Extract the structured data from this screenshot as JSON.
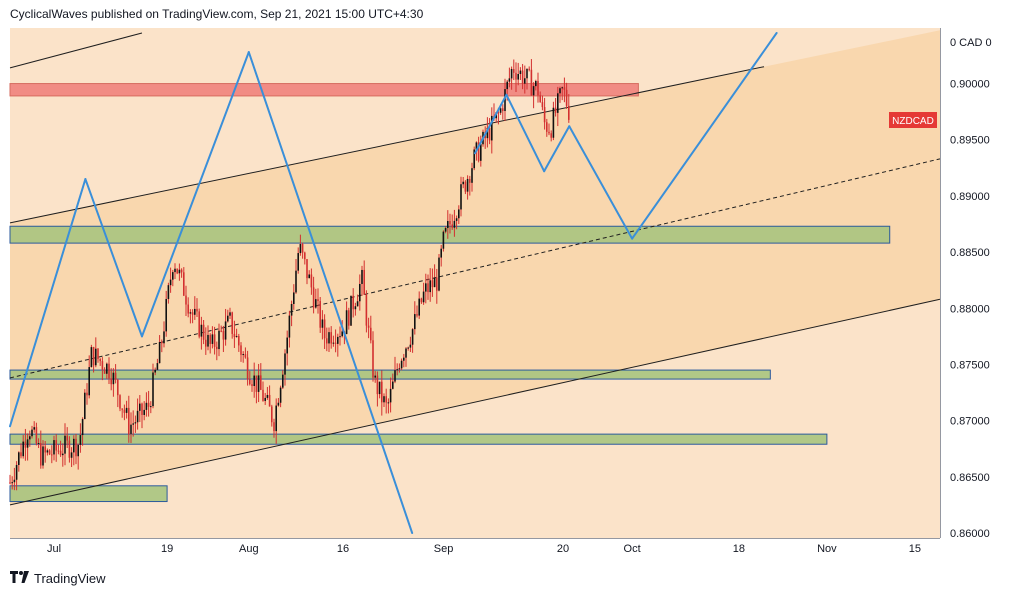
{
  "header": {
    "text": "CyclicalWaves published on TradingView.com, Sep 21, 2021 15:00 UTC+4:30"
  },
  "footer": {
    "brand": "TradingView",
    "logo_icon": "tradingview-logo-icon"
  },
  "colors": {
    "background": "#fbe3c9",
    "channel_fill": "#f9d7ae",
    "candle": "#d32f2f",
    "wave": "#3a8fd9",
    "green_zone": "#a9c47f",
    "green_zone_border": "#2b5a9c",
    "red_zone": "#ef7c78",
    "price_tag": "#e53935"
  },
  "chart_data": {
    "type": "candlestick",
    "symbol": "NZDCAD",
    "currency": "CAD",
    "price_tag": "NZDCAD",
    "y_axis": {
      "unit_label": "0 CAD 0",
      "ticks": [
        "0.90000",
        "0.89500",
        "0.89000",
        "0.88500",
        "0.88000",
        "0.87500",
        "0.87000",
        "0.86500",
        "0.86000"
      ],
      "range": [
        0.86,
        0.9045
      ]
    },
    "x_axis": {
      "ticks": [
        "Jul",
        "19",
        "Aug",
        "16",
        "Sep",
        "20",
        "Oct",
        "18",
        "Nov",
        "15"
      ],
      "tick_dates": [
        "2021-07-01",
        "2021-07-19",
        "2021-08-01",
        "2021-08-16",
        "2021-09-01",
        "2021-09-20",
        "2021-10-01",
        "2021-10-18",
        "2021-11-01",
        "2021-11-15"
      ]
    },
    "candles": {
      "start": "2021-06-24",
      "end": "2021-09-21",
      "path": [
        [
          "2021-06-24",
          0.8645
        ],
        [
          "2021-06-27",
          0.8695
        ],
        [
          "2021-06-29",
          0.8668
        ],
        [
          "2021-07-02",
          0.8675
        ],
        [
          "2021-07-05",
          0.868
        ],
        [
          "2021-07-07",
          0.876
        ],
        [
          "2021-07-10",
          0.8745
        ],
        [
          "2021-07-13",
          0.8695
        ],
        [
          "2021-07-16",
          0.8712
        ],
        [
          "2021-07-18",
          0.8765
        ],
        [
          "2021-07-20",
          0.8845
        ],
        [
          "2021-07-23",
          0.8795
        ],
        [
          "2021-07-26",
          0.8765
        ],
        [
          "2021-07-29",
          0.8788
        ],
        [
          "2021-08-01",
          0.8745
        ],
        [
          "2021-08-03",
          0.8725
        ],
        [
          "2021-08-05",
          0.87
        ],
        [
          "2021-08-07",
          0.877
        ],
        [
          "2021-08-09",
          0.8855
        ],
        [
          "2021-08-11",
          0.8818
        ],
        [
          "2021-08-13",
          0.8775
        ],
        [
          "2021-08-16",
          0.8782
        ],
        [
          "2021-08-19",
          0.8825
        ],
        [
          "2021-08-21",
          0.8735
        ],
        [
          "2021-08-23",
          0.871
        ],
        [
          "2021-08-25",
          0.8755
        ],
        [
          "2021-08-27",
          0.878
        ],
        [
          "2021-08-29",
          0.8815
        ],
        [
          "2021-08-31",
          0.8825
        ],
        [
          "2021-09-01",
          0.886
        ],
        [
          "2021-09-03",
          0.889
        ],
        [
          "2021-09-06",
          0.8935
        ],
        [
          "2021-09-08",
          0.8955
        ],
        [
          "2021-09-10",
          0.8975
        ],
        [
          "2021-09-12",
          0.9015
        ],
        [
          "2021-09-14",
          0.9005
        ],
        [
          "2021-09-16",
          0.8995
        ],
        [
          "2021-09-17",
          0.8965
        ],
        [
          "2021-09-18",
          0.896
        ],
        [
          "2021-09-20",
          0.8995
        ],
        [
          "2021-09-21",
          0.8975
        ]
      ]
    },
    "wave_path": [
      [
        "2021-06-24",
        0.8695
      ],
      [
        "2021-07-06",
        0.8915
      ],
      [
        "2021-07-15",
        0.8775
      ],
      [
        "2021-08-01",
        0.9028
      ],
      [
        "2021-08-27",
        0.86
      ]
    ],
    "wave_projection": [
      [
        "2021-09-06",
        0.8938
      ],
      [
        "2021-09-11",
        0.899
      ],
      [
        "2021-09-17",
        0.8922
      ],
      [
        "2021-09-21",
        0.8962
      ],
      [
        "2021-10-01",
        0.8862
      ],
      [
        "2021-10-24",
        0.9045
      ]
    ],
    "channel_lines": {
      "upper": [
        [
          "2021-06-24",
          0.8876
        ],
        [
          "2021-10-22",
          0.9015
        ]
      ],
      "top": [
        [
          "2021-06-24",
          0.9014
        ],
        [
          "2021-07-15",
          0.9045
        ]
      ],
      "middle_dashed": [
        [
          "2021-06-24",
          0.8738
        ],
        [
          "2021-11-19",
          0.8933
        ]
      ],
      "lower": [
        [
          "2021-06-24",
          0.8625
        ],
        [
          "2021-11-19",
          0.8808
        ]
      ]
    },
    "zones": [
      {
        "kind": "resistance",
        "from": "2021-06-24",
        "to": "2021-10-02",
        "low": 0.8989,
        "high": 0.9
      },
      {
        "kind": "support",
        "from": "2021-06-24",
        "to": "2021-11-11",
        "low": 0.8858,
        "high": 0.8873
      },
      {
        "kind": "support",
        "from": "2021-06-24",
        "to": "2021-10-23",
        "low": 0.8737,
        "high": 0.8745
      },
      {
        "kind": "support",
        "from": "2021-06-24",
        "to": "2021-11-01",
        "low": 0.8679,
        "high": 0.8688
      },
      {
        "kind": "support",
        "from": "2021-06-24",
        "to": "2021-07-19",
        "low": 0.8628,
        "high": 0.8642
      }
    ],
    "grid": false,
    "legend": "none"
  }
}
